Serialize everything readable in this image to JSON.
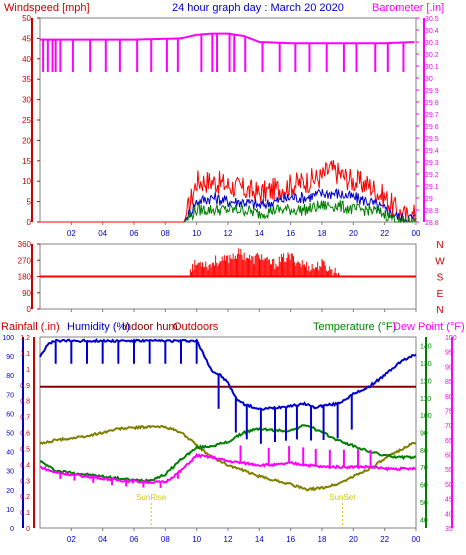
{
  "title": "24 hour graph day : March 20 2020",
  "colors": {
    "windspeed": "#ff0000",
    "gust": "#0000cc",
    "wind_avg": "#008000",
    "barometer": "#ff00ff",
    "direction": "#ff0000",
    "outdoor_hum": "#0000cc",
    "indoor_hum": "#800000",
    "temperature": "#008000",
    "dew_point": "#ff00ff",
    "olive": "#808000",
    "rain": "#ff0000",
    "sun": "#cccc00",
    "frame": "#808080",
    "grid": "#c0c0c0"
  },
  "chart_data": [
    {
      "type": "line",
      "id": "wind",
      "title": "24 hour graph day : March 20 2020",
      "ylabel": "Windspeed [mph]",
      "y2label": "Barometer [.in]",
      "ylim": [
        0,
        50
      ],
      "y_ticks": [
        0,
        5,
        10,
        15,
        20,
        25,
        30,
        35,
        40,
        45,
        50
      ],
      "y2lim": [
        28.8,
        30.5
      ],
      "y2_ticks": [
        "28.8",
        "28.9",
        "29",
        "29.1",
        "29.2",
        "29.3",
        "29.4",
        "29.5",
        "29.6",
        "29.7",
        "29.8",
        "29.9",
        "30",
        "30.1",
        "30.2",
        "30.3",
        "30.4",
        "30.5"
      ],
      "x_ticks": [
        "02",
        "04",
        "06",
        "08",
        "10",
        "12",
        "14",
        "16",
        "18",
        "20",
        "22",
        "00"
      ],
      "xlim": [
        0,
        24
      ],
      "series": [
        {
          "key": "windspeed",
          "x": [
            0,
            9.2,
            9.6,
            10,
            11,
            12,
            13,
            14,
            15,
            16,
            17,
            18,
            18.5,
            19,
            20,
            21,
            22,
            23,
            23.5,
            24
          ],
          "values": [
            0,
            0,
            5,
            10,
            10,
            9,
            8,
            7,
            8,
            9,
            10,
            11,
            13,
            12,
            10,
            9,
            6,
            2,
            1,
            2
          ]
        },
        {
          "key": "gust",
          "x": [
            9.2,
            10,
            11,
            12,
            13,
            14,
            15,
            16,
            17,
            18,
            19,
            20,
            21,
            22,
            23,
            24
          ],
          "values": [
            0,
            5,
            6,
            5,
            5,
            4,
            5,
            6,
            6,
            7,
            7,
            6,
            5,
            3,
            1,
            1
          ]
        },
        {
          "key": "wind_avg",
          "x": [
            9.2,
            10,
            11,
            12,
            13,
            14,
            15,
            16,
            17,
            18,
            19,
            20,
            21,
            22,
            23,
            24
          ],
          "values": [
            0,
            3,
            3,
            3,
            3,
            2,
            3,
            3,
            3,
            4,
            4,
            3,
            3,
            2,
            0,
            0
          ]
        },
        {
          "key": "barometer",
          "axis": "y2",
          "x": [
            0,
            6,
            9,
            10,
            11,
            12,
            13,
            14,
            16,
            18,
            20,
            22,
            24
          ],
          "values": [
            30.32,
            30.32,
            30.33,
            30.36,
            30.37,
            30.37,
            30.35,
            30.3,
            30.29,
            30.29,
            30.29,
            30.29,
            30.3
          ]
        }
      ],
      "y2_dips_at": [
        0.2,
        0.5,
        0.8,
        1.0,
        1.3,
        2.1,
        3.2,
        4.2,
        5.1,
        6.2,
        7.1,
        8.1,
        8.8,
        10.3,
        11.0,
        11.3,
        12.1,
        12.4,
        13.1,
        14.2,
        15.3,
        16.3,
        17.2,
        18.3,
        19.4,
        20.2,
        21.4,
        22.2,
        23.2
      ]
    },
    {
      "type": "scatter",
      "id": "direction",
      "y_ticks": [
        "360",
        "270",
        "180",
        "90",
        "0"
      ],
      "y_values": [
        360,
        270,
        180,
        90,
        0
      ],
      "y_labels_right": [
        "N",
        "W",
        "S",
        "E",
        "N"
      ],
      "reference_line": 180,
      "x_ticks": [
        "02",
        "04",
        "06",
        "08",
        "10",
        "12",
        "14",
        "16",
        "18",
        "20",
        "22",
        "00"
      ],
      "xlim": [
        0,
        24
      ],
      "spikes": {
        "x": [
          9.6,
          10.0,
          10.4,
          10.8,
          11.2,
          11.6,
          12.0,
          12.4,
          12.8,
          13.2,
          13.6,
          14.0,
          14.5,
          15.0,
          15.5,
          16.0,
          16.5,
          17.0,
          17.5,
          18.0,
          18.5,
          19.0
        ],
        "values": [
          230,
          250,
          260,
          240,
          270,
          260,
          280,
          300,
          310,
          290,
          270,
          300,
          260,
          250,
          280,
          290,
          260,
          240,
          230,
          250,
          220,
          200
        ]
      }
    },
    {
      "type": "line",
      "id": "temperature",
      "left_labels": [
        "Rainfall (.in)",
        "Humidity (%)",
        "Indoor hum",
        "Outdoors"
      ],
      "right_labels": [
        "Temperature (°F)",
        "Dew Point (°F)"
      ],
      "rain_ticks": [
        "0",
        "0.1",
        "0.2",
        "0.3",
        "0.4",
        "0.5",
        "0.6",
        "0.7",
        "0.8",
        "0.9",
        "1",
        "1.1",
        "1.2"
      ],
      "rain_lim": [
        0,
        1.2
      ],
      "hum_ticks": [
        "0",
        "10",
        "20",
        "30",
        "40",
        "50",
        "60",
        "70",
        "80",
        "90",
        "100"
      ],
      "hum_lim": [
        0,
        100
      ],
      "temp_ticks": [
        "40",
        "50",
        "60",
        "70",
        "80",
        "90",
        "100",
        "110",
        "120",
        "130",
        "140"
      ],
      "temp_lim": [
        35,
        145
      ],
      "dew_ticks": [
        "35",
        "40",
        "45",
        "50",
        "55",
        "60",
        "65",
        "70",
        "75",
        "80",
        "85",
        "90",
        "95",
        "100"
      ],
      "dew_lim": [
        35,
        100
      ],
      "x_ticks": [
        "02",
        "04",
        "06",
        "08",
        "10",
        "12",
        "14",
        "16",
        "18",
        "20",
        "22",
        "00"
      ],
      "xlim": [
        0,
        24
      ],
      "sun_labels": [
        "SunRise",
        "SunSet"
      ],
      "sun_x": [
        7.1,
        19.3
      ],
      "series": [
        {
          "key": "outdoor_hum",
          "axis": "hum",
          "x": [
            0,
            0.5,
            1,
            3,
            6,
            8,
            10,
            10.5,
            11,
            11.5,
            12,
            12.5,
            13,
            14,
            15,
            16,
            17,
            17.5,
            18,
            19,
            20,
            21,
            22,
            23,
            24
          ],
          "values": [
            90,
            96,
            98,
            98,
            98,
            98,
            98,
            90,
            82,
            80,
            76,
            68,
            65,
            62,
            63,
            64,
            65,
            63,
            64,
            65,
            70,
            74,
            80,
            87,
            91
          ]
        },
        {
          "key": "indoor_hum",
          "axis": "hum",
          "x": [
            0,
            24
          ],
          "values": [
            74,
            74
          ]
        },
        {
          "key": "olive",
          "axis": "hum",
          "x": [
            0,
            1,
            3,
            5,
            7,
            8,
            9,
            9.5,
            10,
            11,
            12,
            13,
            14,
            16,
            17,
            18,
            19,
            20,
            21,
            22,
            23,
            24
          ],
          "values": [
            44,
            46,
            48,
            52,
            53,
            53,
            50,
            47,
            43,
            37,
            33,
            30,
            27,
            23,
            20,
            21,
            23,
            27,
            31,
            36,
            41,
            45
          ]
        },
        {
          "key": "temperature",
          "axis": "hum",
          "x": [
            0,
            1,
            3,
            5,
            6,
            7,
            8,
            9,
            10,
            11,
            12,
            13,
            14,
            15,
            16,
            17,
            18,
            19,
            20,
            21,
            22,
            23,
            24
          ],
          "values": [
            35,
            30,
            28,
            26,
            25,
            25,
            28,
            36,
            42,
            43,
            45,
            50,
            52,
            51,
            51,
            54,
            50,
            46,
            43,
            40,
            38,
            37,
            37
          ]
        },
        {
          "key": "dew_point",
          "axis": "hum",
          "x": [
            0,
            1,
            3,
            5,
            7,
            8,
            9,
            10,
            11,
            12,
            13,
            14,
            15,
            16,
            17,
            18,
            19,
            20,
            21,
            22,
            23,
            24
          ],
          "values": [
            32,
            29,
            27,
            25,
            24,
            24,
            30,
            38,
            37,
            35,
            34,
            33,
            33,
            34,
            33,
            32,
            32,
            32,
            32,
            31,
            31,
            31
          ]
        }
      ],
      "hum_dips_at": [
        1.0,
        2.0,
        3.0,
        4.0,
        5.0,
        6.0,
        7.0,
        8.0,
        9.0,
        10.0,
        11.4,
        12.5,
        13.2,
        14.1,
        15.0,
        15.7,
        16.4,
        17.3,
        18.1,
        19.0,
        19.9
      ],
      "dew_dips_at": [
        1.3,
        2.2,
        3.4,
        4.6,
        5.5,
        6.6,
        7.7,
        8.8,
        12.8,
        14.6,
        15.9,
        16.8,
        17.6,
        18.5,
        19.4,
        20.3,
        21.1
      ]
    }
  ],
  "labels": {
    "windspeed": "Windspeed [mph]",
    "barometer": "Barometer [.in]",
    "rainfall": "Rainfall (.in)",
    "humidity": "Humidity (%)",
    "indoor_hum": "Indoor hum",
    "outdoors": "Outdoors",
    "temperature": "Temperature (°F)",
    "dew_point": "Dew Point (°F)",
    "sunrise": "SunRise",
    "sunset": "SunSet"
  }
}
